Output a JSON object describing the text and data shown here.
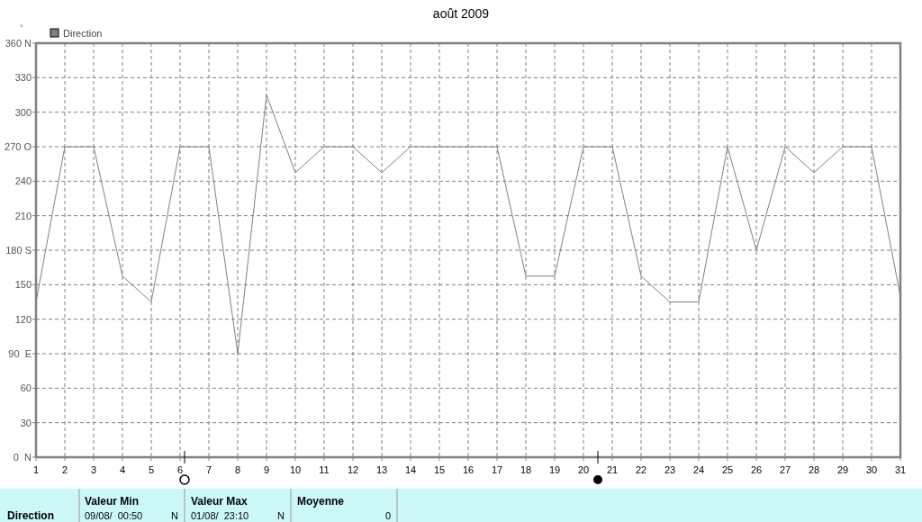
{
  "chart_data": {
    "type": "line",
    "title": "août 2009",
    "ylabel": "°",
    "x": [
      1,
      2,
      3,
      4,
      5,
      6,
      7,
      8,
      9,
      10,
      11,
      12,
      13,
      14,
      15,
      16,
      17,
      18,
      19,
      20,
      21,
      22,
      23,
      24,
      25,
      26,
      27,
      28,
      29,
      30,
      31
    ],
    "series": [
      {
        "name": "Direction",
        "color": "#808080",
        "values": [
          135,
          270,
          270,
          157.5,
          135,
          270,
          270,
          90,
          315,
          247.5,
          270,
          270,
          247.5,
          270,
          270,
          270,
          270,
          157.5,
          157.5,
          270,
          270,
          157.5,
          135,
          135,
          270,
          180,
          270,
          247.5,
          270,
          270,
          140
        ]
      }
    ],
    "xlim": [
      1,
      31
    ],
    "xticks": [
      1,
      2,
      3,
      4,
      5,
      6,
      7,
      8,
      9,
      10,
      11,
      12,
      13,
      14,
      15,
      16,
      17,
      18,
      19,
      20,
      21,
      22,
      23,
      24,
      25,
      26,
      27,
      28,
      29,
      30,
      31
    ],
    "ylim": [
      0,
      360
    ],
    "yticks": [
      {
        "value": 0,
        "label": "0  N"
      },
      30,
      60,
      {
        "value": 90,
        "label": "90  E"
      },
      120,
      150,
      {
        "value": 180,
        "label": "180 S"
      },
      210,
      240,
      {
        "value": 270,
        "label": "270 O"
      },
      300,
      330,
      {
        "value": 360,
        "label": "360 N"
      }
    ],
    "grid": true,
    "legend": "top left",
    "line_style": "solid",
    "marker": "none",
    "annotations": [
      "Direction",
      "Valeur Min",
      "09/08/  00:50",
      "N",
      "Valeur Max",
      "01/08/  23:10",
      "N",
      "Moyenne",
      "0"
    ]
  }
}
